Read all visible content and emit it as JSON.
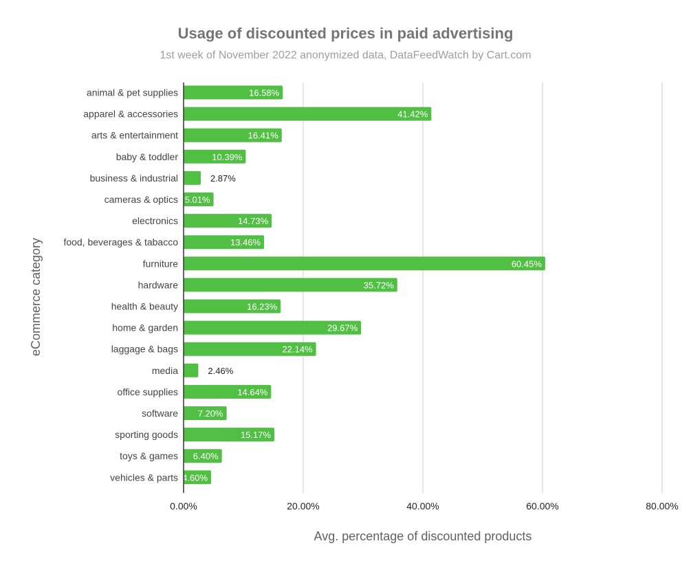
{
  "chart_data": {
    "type": "bar",
    "orientation": "horizontal",
    "title": "Usage of discounted prices in paid advertising",
    "subtitle": "1st week of November 2022 anonymized data, DataFeedWatch by Cart.com",
    "xlabel": "Avg. percentage of discounted products",
    "ylabel": "eCommerce category",
    "xlim": [
      0,
      80
    ],
    "x_ticks": [
      0,
      20,
      40,
      60,
      80
    ],
    "x_tick_labels": [
      "0.00%",
      "20.00%",
      "40.00%",
      "60.00%",
      "80.00%"
    ],
    "grid": "vertical",
    "bar_color": "#51bf44",
    "categories": [
      "animal & pet supplies",
      "apparel & accessories",
      "arts & entertainment",
      "baby & toddler",
      "business & industrial",
      "cameras & optics",
      "electronics",
      "food, beverages & tabacco",
      "furniture",
      "hardware",
      "health & beauty",
      "home & garden",
      "laggage & bags",
      "media",
      "office supplies",
      "software",
      "sporting goods",
      "toys & games",
      "vehicles & parts"
    ],
    "values": [
      16.58,
      41.42,
      16.41,
      10.39,
      2.87,
      5.01,
      14.73,
      13.46,
      60.45,
      35.72,
      16.23,
      29.67,
      22.14,
      2.46,
      14.64,
      7.2,
      15.17,
      6.4,
      4.6
    ],
    "value_labels": [
      "16.58%",
      "41.42%",
      "16.41%",
      "10.39%",
      "2.87%",
      "5.01%",
      "14.73%",
      "13.46%",
      "60.45%",
      "35.72%",
      "16.23%",
      "29.67%",
      "22.14%",
      "2.46%",
      "14.64%",
      "7.20%",
      "15.17%",
      "6.40%",
      "4.60%"
    ]
  }
}
